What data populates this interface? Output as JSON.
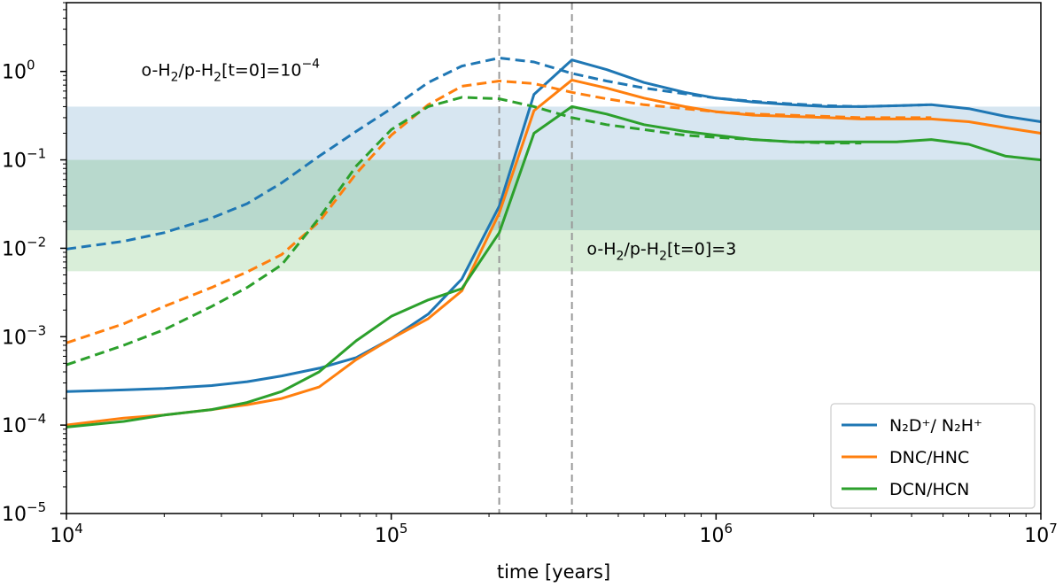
{
  "chart_data": {
    "type": "line",
    "xlabel": "time [years]",
    "ylabel": "",
    "xscale": "log",
    "yscale": "log",
    "xlim": [
      10000,
      10000000
    ],
    "ylim": [
      1e-05,
      6
    ],
    "x_ticks": [
      {
        "value": 10000,
        "base": "10",
        "exp": "4"
      },
      {
        "value": 100000,
        "base": "10",
        "exp": "5"
      },
      {
        "value": 1000000,
        "base": "10",
        "exp": "6"
      },
      {
        "value": 10000000,
        "base": "10",
        "exp": "7"
      }
    ],
    "y_ticks": [
      {
        "value": 1e-05,
        "base": "10",
        "exp": "−5"
      },
      {
        "value": 0.0001,
        "base": "10",
        "exp": "−4"
      },
      {
        "value": 0.001,
        "base": "10",
        "exp": "−3"
      },
      {
        "value": 0.01,
        "base": "10",
        "exp": "−2"
      },
      {
        "value": 0.1,
        "base": "10",
        "exp": "−1"
      },
      {
        "value": 1,
        "base": "10",
        "exp": "0"
      }
    ],
    "bands": [
      {
        "name": "observed-range-blue",
        "ymin": 0.016,
        "ymax": 0.4,
        "color": "#1f77b4",
        "opacity": 0.18
      },
      {
        "name": "observed-range-green",
        "ymin": 0.0055,
        "ymax": 0.1,
        "color": "#2ca02c",
        "opacity": 0.18
      }
    ],
    "vlines": [
      {
        "name": "peak-time-dashed",
        "x": 215000,
        "color": "#999999"
      },
      {
        "name": "peak-time-solid",
        "x": 360000,
        "color": "#999999"
      }
    ],
    "series": [
      {
        "name": "N2D+/N2H+ (t0 ortho/para = 3)",
        "color": "#1f77b4",
        "dashed": false,
        "x": [
          10000,
          15000,
          20000,
          28000,
          36000,
          46000,
          60000,
          78000,
          100000,
          130000,
          165000,
          215000,
          275000,
          360000,
          460000,
          600000,
          800000,
          1000000,
          1300000,
          1700000,
          2200000,
          2800000,
          3600000,
          4600000,
          6000000,
          7800000,
          10000000
        ],
        "y": [
          0.00024,
          0.00025,
          0.00026,
          0.00028,
          0.00031,
          0.00036,
          0.00044,
          0.00058,
          0.00095,
          0.0018,
          0.0045,
          0.03,
          0.55,
          1.35,
          1.05,
          0.75,
          0.58,
          0.5,
          0.45,
          0.42,
          0.4,
          0.4,
          0.41,
          0.42,
          0.38,
          0.31,
          0.27
        ]
      },
      {
        "name": "DNC/HNC (t0 ortho/para = 3)",
        "color": "#ff7f0e",
        "dashed": false,
        "x": [
          10000,
          15000,
          20000,
          28000,
          36000,
          46000,
          60000,
          78000,
          100000,
          130000,
          165000,
          215000,
          275000,
          360000,
          460000,
          600000,
          800000,
          1000000,
          1300000,
          1700000,
          2200000,
          2800000,
          3600000,
          4600000,
          6000000,
          7800000,
          10000000
        ],
        "y": [
          0.0001,
          0.00012,
          0.00013,
          0.00015,
          0.00017,
          0.0002,
          0.00027,
          0.00055,
          0.00095,
          0.0016,
          0.0033,
          0.025,
          0.36,
          0.8,
          0.65,
          0.5,
          0.4,
          0.35,
          0.32,
          0.31,
          0.3,
          0.29,
          0.29,
          0.29,
          0.27,
          0.23,
          0.2
        ]
      },
      {
        "name": "DCN/HCN (t0 ortho/para = 3)",
        "color": "#2ca02c",
        "dashed": false,
        "x": [
          10000,
          15000,
          20000,
          28000,
          36000,
          46000,
          60000,
          78000,
          100000,
          130000,
          165000,
          215000,
          275000,
          360000,
          460000,
          600000,
          800000,
          1000000,
          1300000,
          1700000,
          2200000,
          2800000,
          3600000,
          4600000,
          6000000,
          7800000,
          10000000
        ],
        "y": [
          9.5e-05,
          0.00011,
          0.00013,
          0.00015,
          0.00018,
          0.00024,
          0.0004,
          0.0009,
          0.0017,
          0.0026,
          0.0035,
          0.015,
          0.2,
          0.4,
          0.33,
          0.25,
          0.21,
          0.19,
          0.17,
          0.16,
          0.16,
          0.16,
          0.16,
          0.17,
          0.15,
          0.11,
          0.1
        ]
      },
      {
        "name": "N2D+/N2H+ (t0 ortho/para = 1e-4)",
        "color": "#1f77b4",
        "dashed": true,
        "x": [
          10000,
          15000,
          20000,
          28000,
          36000,
          46000,
          60000,
          78000,
          100000,
          130000,
          165000,
          215000,
          275000,
          360000,
          460000,
          600000,
          800000,
          1000000,
          1300000,
          1700000,
          2200000,
          2800000,
          3600000,
          4600000
        ],
        "y": [
          0.0098,
          0.012,
          0.015,
          0.022,
          0.032,
          0.055,
          0.11,
          0.21,
          0.38,
          0.75,
          1.15,
          1.42,
          1.28,
          0.95,
          0.78,
          0.65,
          0.56,
          0.5,
          0.46,
          0.43,
          0.41,
          0.4,
          0.41,
          0.42
        ]
      },
      {
        "name": "DNC/HNC (t0 ortho/para = 1e-4)",
        "color": "#ff7f0e",
        "dashed": true,
        "x": [
          10000,
          15000,
          20000,
          28000,
          36000,
          46000,
          60000,
          78000,
          100000,
          130000,
          165000,
          215000,
          275000,
          360000,
          460000,
          600000,
          800000,
          1000000,
          1300000,
          1700000,
          2200000,
          2800000,
          3600000,
          4600000
        ],
        "y": [
          0.00085,
          0.0014,
          0.0022,
          0.0036,
          0.0054,
          0.0085,
          0.02,
          0.07,
          0.19,
          0.42,
          0.68,
          0.78,
          0.73,
          0.58,
          0.49,
          0.42,
          0.38,
          0.35,
          0.33,
          0.32,
          0.31,
          0.3,
          0.3,
          0.3
        ]
      },
      {
        "name": "DCN/HCN (t0 ortho/para = 1e-4)",
        "color": "#2ca02c",
        "dashed": true,
        "x": [
          10000,
          15000,
          20000,
          28000,
          36000,
          46000,
          60000,
          78000,
          100000,
          130000,
          165000,
          215000,
          275000,
          360000,
          460000,
          600000,
          800000,
          1000000,
          1300000,
          1700000,
          2200000,
          2800000
        ],
        "y": [
          0.00048,
          0.0008,
          0.0012,
          0.0022,
          0.0036,
          0.0065,
          0.022,
          0.085,
          0.22,
          0.4,
          0.51,
          0.49,
          0.4,
          0.3,
          0.25,
          0.22,
          0.19,
          0.18,
          0.17,
          0.16,
          0.155,
          0.155
        ]
      }
    ],
    "legend": {
      "position": "lower-right",
      "entries": [
        {
          "label": "N₂D⁺/ N₂H⁺",
          "color": "#1f77b4"
        },
        {
          "label": "DNC/HNC",
          "color": "#ff7f0e"
        },
        {
          "label": "DCN/HCN",
          "color": "#2ca02c"
        }
      ]
    },
    "annotations": [
      {
        "name": "annotation-low-ortho-para",
        "prefix": "o-H",
        "sub1": "2",
        "mid": "/p-H",
        "sub2": "2",
        "suffix": "[t=0]=10",
        "sup": "−4",
        "x": 17000,
        "y": 0.9
      },
      {
        "name": "annotation-high-ortho-para",
        "prefix": "o-H",
        "sub1": "2",
        "mid": "/p-H",
        "sub2": "2",
        "suffix": "[t=0]=3",
        "sup": "",
        "x": 400000,
        "y": 0.0085
      }
    ]
  }
}
